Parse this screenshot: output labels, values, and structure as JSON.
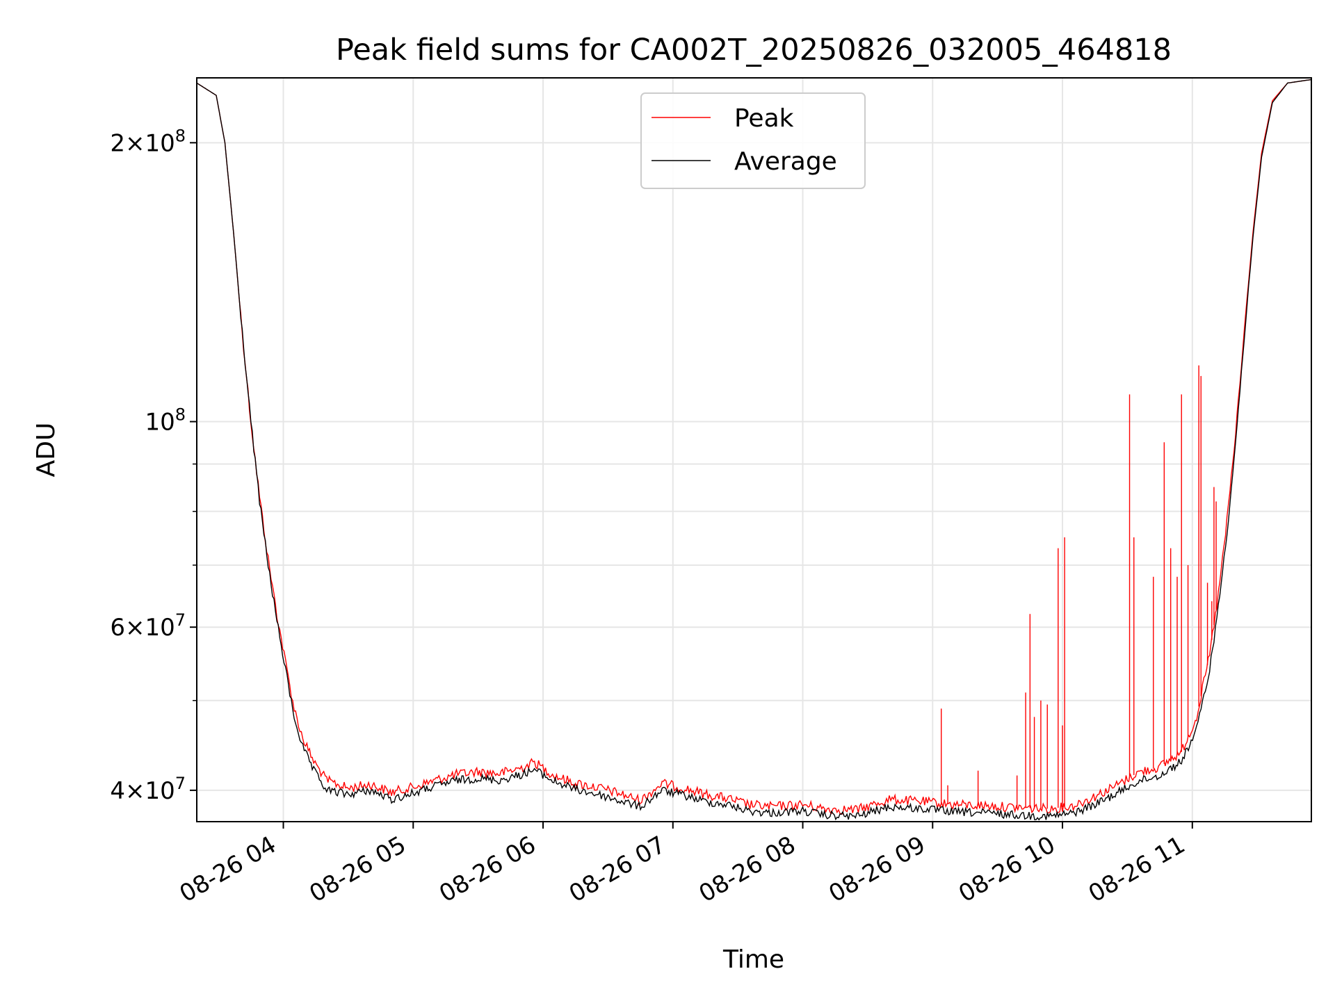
{
  "chart_data": {
    "type": "line",
    "title": "Peak field sums for CA002T_20250826_032005_464818",
    "xlabel": "Time",
    "ylabel": "ADU",
    "x_axis_type": "time",
    "x_range": [
      "2025-08-26 03:20",
      "2025-08-26 11:55"
    ],
    "ylim": [
      37000000,
      235000000
    ],
    "y_scale": "log",
    "grid": true,
    "legend_position": "upper center",
    "x_ticks": [
      {
        "value": "2025-08-26 04:00",
        "label": "08-26 04"
      },
      {
        "value": "2025-08-26 05:00",
        "label": "08-26 05"
      },
      {
        "value": "2025-08-26 06:00",
        "label": "08-26 06"
      },
      {
        "value": "2025-08-26 07:00",
        "label": "08-26 07"
      },
      {
        "value": "2025-08-26 08:00",
        "label": "08-26 08"
      },
      {
        "value": "2025-08-26 09:00",
        "label": "08-26 09"
      },
      {
        "value": "2025-08-26 10:00",
        "label": "08-26 10"
      },
      {
        "value": "2025-08-26 11:00",
        "label": "08-26 11"
      }
    ],
    "y_major_ticks": [
      {
        "value": 40000000,
        "mantissa": "4",
        "exp": "7"
      },
      {
        "value": 60000000,
        "mantissa": "6",
        "exp": "7"
      },
      {
        "value": 100000000,
        "mantissa": "",
        "exp": "8"
      },
      {
        "value": 200000000,
        "mantissa": "2",
        "exp": "8"
      }
    ],
    "y_minor_ticks": [
      50000000,
      70000000,
      80000000,
      90000000
    ],
    "series": [
      {
        "name": "Peak",
        "color": "#ff0000",
        "points": [
          [
            "2025-08-26 03:20",
            232000000
          ],
          [
            "2025-08-26 03:29",
            225000000
          ],
          [
            "2025-08-26 03:33",
            200000000
          ],
          [
            "2025-08-26 03:37",
            160000000
          ],
          [
            "2025-08-26 03:41",
            125000000
          ],
          [
            "2025-08-26 03:45",
            100000000
          ],
          [
            "2025-08-26 03:49",
            83000000
          ],
          [
            "2025-08-26 03:53",
            71000000
          ],
          [
            "2025-08-26 03:57",
            62000000
          ],
          [
            "2025-08-26 04:01",
            55000000
          ],
          [
            "2025-08-26 04:05",
            49000000
          ],
          [
            "2025-08-26 04:09",
            45500000
          ],
          [
            "2025-08-26 04:14",
            43000000
          ],
          [
            "2025-08-26 04:20",
            41000000
          ],
          [
            "2025-08-26 04:30",
            40200000
          ],
          [
            "2025-08-26 04:40",
            40600000
          ],
          [
            "2025-08-26 04:50",
            39800000
          ],
          [
            "2025-08-26 05:00",
            40300000
          ],
          [
            "2025-08-26 05:10",
            41000000
          ],
          [
            "2025-08-26 05:20",
            41600000
          ],
          [
            "2025-08-26 05:30",
            41900000
          ],
          [
            "2025-08-26 05:40",
            41700000
          ],
          [
            "2025-08-26 05:50",
            42300000
          ],
          [
            "2025-08-26 05:56",
            42900000
          ],
          [
            "2025-08-26 06:05",
            41500000
          ],
          [
            "2025-08-26 06:15",
            40700000
          ],
          [
            "2025-08-26 06:25",
            40300000
          ],
          [
            "2025-08-26 06:35",
            39700000
          ],
          [
            "2025-08-26 06:45",
            39000000
          ],
          [
            "2025-08-26 06:55",
            40700000
          ],
          [
            "2025-08-26 07:05",
            40200000
          ],
          [
            "2025-08-26 07:15",
            39600000
          ],
          [
            "2025-08-26 07:25",
            39200000
          ],
          [
            "2025-08-26 07:35",
            38600000
          ],
          [
            "2025-08-26 07:45",
            38400000
          ],
          [
            "2025-08-26 08:00",
            38600000
          ],
          [
            "2025-08-26 08:10",
            38200000
          ],
          [
            "2025-08-26 08:25",
            38100000
          ],
          [
            "2025-08-26 08:40",
            39100000
          ],
          [
            "2025-08-26 08:55",
            38900000
          ],
          [
            "2025-08-26 09:10",
            38600000
          ],
          [
            "2025-08-26 09:25",
            38500000
          ],
          [
            "2025-08-26 09:40",
            38300000
          ],
          [
            "2025-08-26 09:55",
            38200000
          ],
          [
            "2025-08-26 10:05",
            38500000
          ],
          [
            "2025-08-26 10:15",
            39400000
          ],
          [
            "2025-08-26 10:25",
            40500000
          ],
          [
            "2025-08-26 10:35",
            41800000
          ],
          [
            "2025-08-26 10:45",
            42400000
          ],
          [
            "2025-08-26 10:55",
            44000000
          ],
          [
            "2025-08-26 11:02",
            48000000
          ],
          [
            "2025-08-26 11:08",
            56000000
          ],
          [
            "2025-08-26 11:12",
            65000000
          ],
          [
            "2025-08-26 11:16",
            78000000
          ],
          [
            "2025-08-26 11:20",
            97000000
          ],
          [
            "2025-08-26 11:24",
            125000000
          ],
          [
            "2025-08-26 11:28",
            160000000
          ],
          [
            "2025-08-26 11:32",
            195000000
          ],
          [
            "2025-08-26 11:37",
            222000000
          ],
          [
            "2025-08-26 11:44",
            232000000
          ],
          [
            "2025-08-26 11:55",
            234000000
          ]
        ],
        "spikes": [
          [
            "2025-08-26 09:04",
            49000000
          ],
          [
            "2025-08-26 09:07",
            40500000
          ],
          [
            "2025-08-26 09:21",
            42000000
          ],
          [
            "2025-08-26 09:39",
            41500000
          ],
          [
            "2025-08-26 09:43",
            51000000
          ],
          [
            "2025-08-26 09:45",
            62000000
          ],
          [
            "2025-08-26 09:47",
            48000000
          ],
          [
            "2025-08-26 09:50",
            50000000
          ],
          [
            "2025-08-26 09:53",
            49500000
          ],
          [
            "2025-08-26 09:58",
            73000000
          ],
          [
            "2025-08-26 10:00",
            47000000
          ],
          [
            "2025-08-26 10:01",
            75000000
          ],
          [
            "2025-08-26 10:31",
            107000000
          ],
          [
            "2025-08-26 10:33",
            75000000
          ],
          [
            "2025-08-26 10:42",
            68000000
          ],
          [
            "2025-08-26 10:47",
            95000000
          ],
          [
            "2025-08-26 10:50",
            73000000
          ],
          [
            "2025-08-26 10:53",
            68000000
          ],
          [
            "2025-08-26 10:55",
            107000000
          ],
          [
            "2025-08-26 10:58",
            70000000
          ],
          [
            "2025-08-26 11:03",
            115000000
          ],
          [
            "2025-08-26 11:04",
            112000000
          ],
          [
            "2025-08-26 11:07",
            67000000
          ],
          [
            "2025-08-26 11:09",
            64000000
          ],
          [
            "2025-08-26 11:10",
            85000000
          ],
          [
            "2025-08-26 11:11",
            82000000
          ]
        ]
      },
      {
        "name": "Average",
        "color": "#000000",
        "points": [
          [
            "2025-08-26 03:20",
            232000000
          ],
          [
            "2025-08-26 03:29",
            225000000
          ],
          [
            "2025-08-26 03:33",
            200000000
          ],
          [
            "2025-08-26 03:37",
            160000000
          ],
          [
            "2025-08-26 03:41",
            125000000
          ],
          [
            "2025-08-26 03:45",
            100000000
          ],
          [
            "2025-08-26 03:49",
            82000000
          ],
          [
            "2025-08-26 03:53",
            70000000
          ],
          [
            "2025-08-26 03:57",
            61000000
          ],
          [
            "2025-08-26 04:01",
            54000000
          ],
          [
            "2025-08-26 04:05",
            48000000
          ],
          [
            "2025-08-26 04:09",
            44500000
          ],
          [
            "2025-08-26 04:14",
            42000000
          ],
          [
            "2025-08-26 04:20",
            40000000
          ],
          [
            "2025-08-26 04:30",
            39600000
          ],
          [
            "2025-08-26 04:40",
            40000000
          ],
          [
            "2025-08-26 04:50",
            39100000
          ],
          [
            "2025-08-26 05:00",
            39700000
          ],
          [
            "2025-08-26 05:10",
            40400000
          ],
          [
            "2025-08-26 05:20",
            41000000
          ],
          [
            "2025-08-26 05:30",
            41200000
          ],
          [
            "2025-08-26 05:40",
            41000000
          ],
          [
            "2025-08-26 05:50",
            41600000
          ],
          [
            "2025-08-26 05:56",
            42100000
          ],
          [
            "2025-08-26 06:05",
            40900000
          ],
          [
            "2025-08-26 06:15",
            40100000
          ],
          [
            "2025-08-26 06:25",
            39600000
          ],
          [
            "2025-08-26 06:35",
            39000000
          ],
          [
            "2025-08-26 06:45",
            38400000
          ],
          [
            "2025-08-26 06:55",
            40000000
          ],
          [
            "2025-08-26 07:05",
            39500000
          ],
          [
            "2025-08-26 07:15",
            38900000
          ],
          [
            "2025-08-26 07:25",
            38600000
          ],
          [
            "2025-08-26 07:35",
            38000000
          ],
          [
            "2025-08-26 07:45",
            37800000
          ],
          [
            "2025-08-26 08:00",
            38000000
          ],
          [
            "2025-08-26 08:10",
            37600000
          ],
          [
            "2025-08-26 08:25",
            37500000
          ],
          [
            "2025-08-26 08:40",
            38400000
          ],
          [
            "2025-08-26 08:55",
            38200000
          ],
          [
            "2025-08-26 09:10",
            37900000
          ],
          [
            "2025-08-26 09:25",
            37800000
          ],
          [
            "2025-08-26 09:40",
            37600000
          ],
          [
            "2025-08-26 09:55",
            37500000
          ],
          [
            "2025-08-26 10:05",
            37800000
          ],
          [
            "2025-08-26 10:15",
            38600000
          ],
          [
            "2025-08-26 10:25",
            39700000
          ],
          [
            "2025-08-26 10:35",
            40900000
          ],
          [
            "2025-08-26 10:45",
            41500000
          ],
          [
            "2025-08-26 10:55",
            43000000
          ],
          [
            "2025-08-26 11:02",
            46500000
          ],
          [
            "2025-08-26 11:08",
            54000000
          ],
          [
            "2025-08-26 11:12",
            63000000
          ],
          [
            "2025-08-26 11:16",
            76000000
          ],
          [
            "2025-08-26 11:20",
            95000000
          ],
          [
            "2025-08-26 11:24",
            123000000
          ],
          [
            "2025-08-26 11:28",
            158000000
          ],
          [
            "2025-08-26 11:32",
            193000000
          ],
          [
            "2025-08-26 11:37",
            221000000
          ],
          [
            "2025-08-26 11:44",
            232000000
          ],
          [
            "2025-08-26 11:55",
            234000000
          ]
        ]
      }
    ]
  }
}
